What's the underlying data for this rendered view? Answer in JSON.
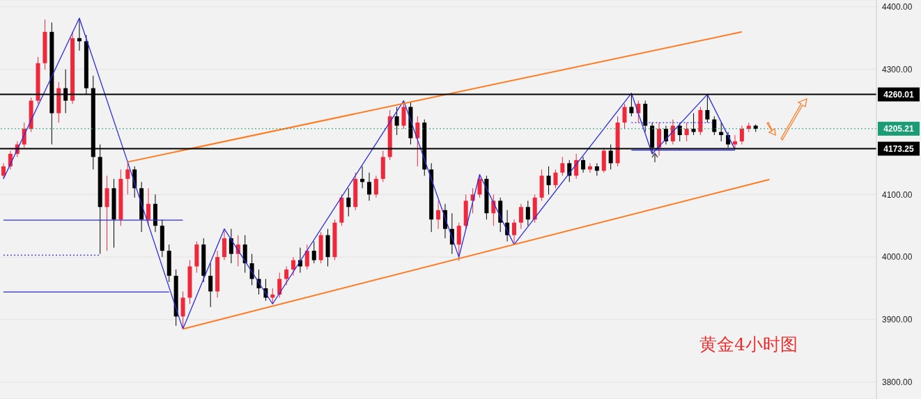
{
  "chart_data": {
    "type": "candlestick",
    "annotations": [
      "黄金4小时图"
    ],
    "categories": [
      null,
      null,
      null,
      null,
      null,
      null,
      null,
      null,
      null,
      null,
      null,
      null,
      null,
      null,
      null,
      null,
      null,
      null,
      null,
      null,
      null,
      null,
      null,
      null,
      null,
      null,
      null,
      null,
      null,
      null,
      null,
      null,
      null,
      null,
      null,
      null,
      null,
      null,
      null,
      null,
      null,
      null,
      null,
      null,
      null,
      null,
      null,
      null,
      null,
      null,
      null,
      null,
      null,
      null,
      null,
      null,
      null,
      null,
      null,
      null,
      null,
      null,
      null,
      null,
      null,
      null,
      null,
      null,
      null,
      null,
      null,
      null,
      null,
      null,
      null,
      null,
      null,
      null,
      null,
      null,
      null,
      null,
      null,
      null,
      null,
      null,
      null,
      null,
      null,
      null,
      null,
      null,
      null,
      null,
      null,
      null,
      null,
      null,
      null,
      null,
      null,
      null,
      null,
      null,
      null,
      null,
      null,
      null,
      null,
      null,
      null,
      null,
      null,
      null,
      null,
      null,
      null,
      null,
      null,
      null,
      null,
      null,
      null,
      null,
      null,
      null,
      null
    ],
    "ylim": [
      3773,
      4411
    ],
    "yticks": [
      {
        "value": 3800,
        "label": "3800.00"
      },
      {
        "value": 3900,
        "label": "3900.00"
      },
      {
        "value": 4000,
        "label": "4000.00"
      },
      {
        "value": 4100,
        "label": "4100.00"
      },
      {
        "value": 4300,
        "label": "4300.00"
      },
      {
        "value": 4400,
        "label": "4400.00"
      }
    ],
    "grid": "y",
    "series": [
      {
        "type": "candlestick",
        "ohlc": [
          [
            4130,
            4150,
            4125,
            4145
          ],
          [
            4145,
            4170,
            4140,
            4165
          ],
          [
            4165,
            4185,
            4160,
            4180
          ],
          [
            4180,
            4215,
            4175,
            4205
          ],
          [
            4205,
            4255,
            4200,
            4250
          ],
          [
            4250,
            4320,
            4245,
            4310
          ],
          [
            4310,
            4380,
            4300,
            4360
          ],
          [
            4360,
            4375,
            4180,
            4230
          ],
          [
            4230,
            4280,
            4215,
            4270
          ],
          [
            4270,
            4300,
            4230,
            4250
          ],
          [
            4250,
            4360,
            4245,
            4350
          ],
          [
            4350,
            4382,
            4330,
            4345
          ],
          [
            4345,
            4355,
            4260,
            4270
          ],
          [
            4270,
            4290,
            4140,
            4160
          ],
          [
            4160,
            4180,
            4005,
            4080
          ],
          [
            4080,
            4130,
            4010,
            4110
          ],
          [
            4110,
            4125,
            4015,
            4060
          ],
          [
            4060,
            4140,
            4050,
            4125
          ],
          [
            4125,
            4152,
            4100,
            4140
          ],
          [
            4140,
            4145,
            4095,
            4110
          ],
          [
            4110,
            4120,
            4040,
            4060
          ],
          [
            4060,
            4110,
            4050,
            4085
          ],
          [
            4085,
            4100,
            4040,
            4050
          ],
          [
            4050,
            4060,
            4000,
            4010
          ],
          [
            4010,
            4020,
            3960,
            3970
          ],
          [
            3970,
            3980,
            3890,
            3905
          ],
          [
            3905,
            3945,
            3885,
            3935
          ],
          [
            3935,
            3995,
            3925,
            3985
          ],
          [
            3985,
            4025,
            3975,
            4020
          ],
          [
            4020,
            4030,
            3960,
            3970
          ],
          [
            3970,
            3990,
            3920,
            3945
          ],
          [
            3945,
            4010,
            3935,
            4000
          ],
          [
            4000,
            4045,
            3995,
            4030
          ],
          [
            4030,
            4045,
            3990,
            4005
          ],
          [
            4005,
            4035,
            3985,
            4020
          ],
          [
            4020,
            4035,
            3975,
            3990
          ],
          [
            3990,
            4005,
            3955,
            3965
          ],
          [
            3965,
            3980,
            3940,
            3950
          ],
          [
            3950,
            3965,
            3930,
            3935
          ],
          [
            3935,
            3950,
            3925,
            3940
          ],
          [
            3940,
            3975,
            3935,
            3965
          ],
          [
            3965,
            3985,
            3955,
            3980
          ],
          [
            3980,
            4000,
            3970,
            3995
          ],
          [
            3995,
            4015,
            3975,
            3985
          ],
          [
            3985,
            4020,
            3980,
            4010
          ],
          [
            4010,
            4025,
            3990,
            3995
          ],
          [
            3995,
            4040,
            3990,
            4035
          ],
          [
            4035,
            4045,
            3985,
            4000
          ],
          [
            4000,
            4060,
            3995,
            4055
          ],
          [
            4055,
            4100,
            4050,
            4095
          ],
          [
            4095,
            4110,
            4065,
            4080
          ],
          [
            4080,
            4135,
            4075,
            4125
          ],
          [
            4125,
            4145,
            4110,
            4120
          ],
          [
            4120,
            4135,
            4090,
            4100
          ],
          [
            4100,
            4130,
            4095,
            4125
          ],
          [
            4125,
            4170,
            4120,
            4160
          ],
          [
            4160,
            4235,
            4155,
            4225
          ],
          [
            4225,
            4240,
            4195,
            4210
          ],
          [
            4210,
            4250,
            4205,
            4240
          ],
          [
            4240,
            4248,
            4180,
            4190
          ],
          [
            4190,
            4225,
            4145,
            4215
          ],
          [
            4215,
            4220,
            4130,
            4140
          ],
          [
            4140,
            4150,
            4040,
            4060
          ],
          [
            4060,
            4090,
            4045,
            4075
          ],
          [
            4075,
            4085,
            4030,
            4045
          ],
          [
            4045,
            4070,
            4005,
            4020
          ],
          [
            4020,
            4055,
            3994,
            4050
          ],
          [
            4050,
            4100,
            4045,
            4090
          ],
          [
            4090,
            4110,
            4070,
            4100
          ],
          [
            4100,
            4132,
            4095,
            4125
          ],
          [
            4125,
            4130,
            4060,
            4070
          ],
          [
            4070,
            4100,
            4050,
            4090
          ],
          [
            4090,
            4095,
            4040,
            4055
          ],
          [
            4055,
            4075,
            4025,
            4035
          ],
          [
            4035,
            4060,
            4020,
            4055
          ],
          [
            4055,
            4085,
            4045,
            4080
          ],
          [
            4080,
            4090,
            4050,
            4060
          ],
          [
            4060,
            4100,
            4055,
            4095
          ],
          [
            4095,
            4140,
            4090,
            4130
          ],
          [
            4130,
            4145,
            4100,
            4115
          ],
          [
            4115,
            4140,
            4110,
            4135
          ],
          [
            4135,
            4160,
            4130,
            4150
          ],
          [
            4150,
            4155,
            4120,
            4130
          ],
          [
            4130,
            4165,
            4125,
            4155
          ],
          [
            4155,
            4160,
            4135,
            4140
          ],
          [
            4140,
            4150,
            4135,
            4145
          ],
          [
            4145,
            4150,
            4130,
            4138
          ],
          [
            4138,
            4175,
            4135,
            4170
          ],
          [
            4170,
            4180,
            4140,
            4150
          ],
          [
            4150,
            4225,
            4145,
            4215
          ],
          [
            4215,
            4245,
            4205,
            4240
          ],
          [
            4240,
            4262,
            4225,
            4230
          ],
          [
            4230,
            4250,
            4215,
            4245
          ],
          [
            4245,
            4250,
            4200,
            4210
          ],
          [
            4210,
            4215,
            4165,
            4175
          ],
          [
            4175,
            4215,
            4162,
            4205
          ],
          [
            4205,
            4210,
            4180,
            4185
          ],
          [
            4185,
            4220,
            4180,
            4210
          ],
          [
            4210,
            4215,
            4185,
            4195
          ],
          [
            4195,
            4215,
            4185,
            4205
          ],
          [
            4205,
            4230,
            4195,
            4200
          ],
          [
            4200,
            4240,
            4195,
            4235
          ],
          [
            4235,
            4260,
            4215,
            4220
          ],
          [
            4220,
            4225,
            4195,
            4200
          ],
          [
            4200,
            4215,
            4185,
            4195
          ],
          [
            4195,
            4200,
            4175,
            4180
          ],
          [
            4180,
            4195,
            4172,
            4185
          ],
          [
            4185,
            4210,
            4180,
            4205
          ],
          [
            4205,
            4215,
            4200,
            4210
          ],
          [
            4210,
            4212,
            4200,
            4205
          ],
          null,
          null,
          null,
          null,
          null,
          null,
          null,
          null,
          null,
          null,
          null,
          null,
          null,
          null,
          null,
          null,
          null
        ],
        "colors": [
          "#f0283c",
          "#f0283c",
          "#f0283c",
          "#f0283c",
          "#f0283c",
          "#f0283c",
          "#f0283c",
          "#000000",
          "#f0283c",
          "#000000",
          "#f0283c",
          "#000000",
          "#000000",
          "#000000",
          "#000000",
          "#f0283c",
          "#000000",
          "#f0283c",
          "#f0283c",
          "#000000",
          "#000000",
          "#f0283c",
          "#000000",
          "#000000",
          "#000000",
          "#000000",
          "#f0283c",
          "#f0283c",
          "#f0283c",
          "#000000",
          "#000000",
          "#f0283c",
          "#f0283c",
          "#000000",
          "#f0283c",
          "#000000",
          "#000000",
          "#000000",
          "#000000",
          "#f0283c",
          "#f0283c",
          "#f0283c",
          "#f0283c",
          "#000000",
          "#f0283c",
          "#000000",
          "#f0283c",
          "#000000",
          "#f0283c",
          "#f0283c",
          "#000000",
          "#f0283c",
          "#000000",
          "#000000",
          "#f0283c",
          "#f0283c",
          "#f0283c",
          "#000000",
          "#f0283c",
          "#000000",
          "#f0283c",
          "#000000",
          "#000000",
          "#f0283c",
          "#000000",
          "#000000",
          "#f0283c",
          "#f0283c",
          "#f0283c",
          "#f0283c",
          "#000000",
          "#f0283c",
          "#000000",
          "#000000",
          "#f0283c",
          "#f0283c",
          "#000000",
          "#f0283c",
          "#f0283c",
          "#000000",
          "#f0283c",
          "#f0283c",
          "#000000",
          "#f0283c",
          "#000000",
          "#f0283c",
          "#000000",
          "#f0283c",
          "#000000",
          "#f0283c",
          "#f0283c",
          "#000000",
          "#f0283c",
          "#000000",
          "#000000",
          "#f0283c",
          "#000000",
          "#f0283c",
          "#000000",
          "#f0283c",
          "#000000",
          "#f0283c",
          "#000000",
          "#000000",
          "#000000",
          "#000000",
          "#f0283c",
          "#f0283c",
          "#f0283c",
          "#000000",
          null,
          null,
          null,
          null,
          null,
          null,
          null,
          null,
          null,
          null,
          null,
          null,
          null,
          null,
          null,
          null,
          null
        ]
      },
      {
        "type": "line",
        "color": "#2b2be0",
        "values": [
          4125,
          null,
          null,
          null,
          null,
          null,
          null,
          null,
          null,
          null,
          null,
          4382,
          null,
          null,
          null,
          null,
          null,
          null,
          4152,
          null,
          null,
          null,
          null,
          null,
          null,
          null,
          3885,
          null,
          null,
          null,
          null,
          null,
          4045,
          null,
          null,
          null,
          null,
          null,
          null,
          3925,
          null,
          null,
          null,
          null,
          null,
          null,
          null,
          null,
          null,
          null,
          null,
          null,
          null,
          null,
          null,
          null,
          null,
          null,
          4250,
          null,
          null,
          null,
          null,
          null,
          null,
          null,
          4000,
          null,
          null,
          4132,
          null,
          null,
          null,
          null,
          4020,
          null,
          null,
          null,
          null,
          null,
          null,
          null,
          null,
          null,
          null,
          null,
          null,
          null,
          null,
          null,
          null,
          4262,
          null,
          null,
          4165,
          null,
          null,
          null,
          null,
          null,
          null,
          null,
          4260,
          null,
          null,
          null,
          4172,
          null,
          null,
          null,
          null,
          null,
          null,
          null,
          null,
          null,
          null,
          null,
          null,
          null,
          null,
          null,
          null,
          null,
          null,
          null,
          null
        ]
      },
      {
        "type": "line",
        "color": "#ff7a21",
        "values": [
          null,
          null,
          null,
          null,
          null,
          null,
          null,
          null,
          null,
          null,
          null,
          null,
          null,
          null,
          null,
          null,
          null,
          null,
          4152,
          null,
          null,
          null,
          null,
          null,
          null,
          null,
          null,
          null,
          null,
          null,
          null,
          null,
          null,
          null,
          null,
          null,
          null,
          null,
          null,
          null,
          null,
          null,
          null,
          null,
          null,
          null,
          null,
          null,
          null,
          null,
          null,
          null,
          null,
          null,
          null,
          null,
          null,
          null,
          null,
          null,
          null,
          null,
          null,
          null,
          null,
          null,
          null,
          null,
          null,
          null,
          null,
          null,
          null,
          null,
          null,
          null,
          null,
          null,
          null,
          null,
          null,
          null,
          null,
          null,
          null,
          null,
          null,
          null,
          null,
          null,
          null,
          null,
          null,
          null,
          null,
          null,
          null,
          null,
          null,
          null,
          null,
          null,
          null,
          null,
          null,
          null,
          null,
          4360,
          null,
          null,
          null,
          null,
          null,
          null,
          null,
          null,
          null,
          null,
          null,
          null,
          null,
          null,
          null,
          null,
          null,
          null,
          null
        ]
      },
      {
        "type": "line",
        "color": "#ff7a21",
        "values": [
          null,
          null,
          null,
          null,
          null,
          null,
          null,
          null,
          null,
          null,
          null,
          null,
          null,
          null,
          null,
          null,
          null,
          null,
          null,
          null,
          null,
          null,
          null,
          null,
          null,
          null,
          3885,
          null,
          null,
          null,
          null,
          null,
          null,
          null,
          null,
          null,
          null,
          null,
          null,
          null,
          null,
          null,
          null,
          null,
          null,
          null,
          null,
          null,
          null,
          null,
          null,
          null,
          null,
          null,
          null,
          null,
          null,
          null,
          null,
          null,
          null,
          null,
          null,
          null,
          null,
          null,
          null,
          null,
          null,
          null,
          null,
          null,
          null,
          null,
          null,
          null,
          null,
          null,
          null,
          null,
          null,
          null,
          null,
          null,
          null,
          null,
          null,
          null,
          null,
          null,
          null,
          null,
          null,
          null,
          null,
          null,
          null,
          null,
          null,
          null,
          null,
          null,
          null,
          null,
          null,
          null,
          null,
          null,
          null,
          null,
          null,
          4124,
          null,
          null,
          null,
          null,
          null,
          null,
          null,
          null,
          null,
          null,
          null,
          null,
          null,
          null,
          null
        ]
      },
      {
        "type": "line",
        "color": "#2b2be0",
        "values": [
          4059,
          null,
          null,
          null,
          null,
          null,
          null,
          null,
          null,
          null,
          null,
          null,
          null,
          null,
          null,
          null,
          null,
          null,
          null,
          null,
          null,
          null,
          null,
          null,
          null,
          null,
          4059,
          null,
          null,
          null,
          null,
          null,
          null,
          null,
          null,
          null,
          null,
          null,
          null,
          null,
          null,
          null,
          null,
          null,
          null,
          null,
          null,
          null,
          null,
          null,
          null,
          null,
          null,
          null,
          null,
          null,
          null,
          null,
          null,
          null,
          null,
          null,
          null,
          null,
          null,
          null,
          null,
          null,
          null,
          null,
          null,
          null,
          null,
          null,
          null,
          null,
          null,
          null,
          null,
          null,
          null,
          null,
          null,
          null,
          null,
          null,
          null,
          null,
          null,
          null,
          null,
          null,
          null,
          null,
          null,
          null,
          null,
          null,
          null,
          null,
          null,
          null,
          null,
          null,
          null,
          null,
          null,
          null,
          null,
          null,
          null,
          null,
          null,
          null,
          null,
          null,
          null,
          null,
          null,
          null,
          null,
          null,
          null,
          null,
          null,
          null,
          null
        ]
      },
      {
        "type": "line",
        "color": "#2b2be0",
        "line_style": "dotted",
        "values": [
          4003,
          null,
          null,
          null,
          null,
          null,
          null,
          null,
          null,
          null,
          null,
          null,
          null,
          null,
          4003,
          null,
          null,
          null,
          null,
          null,
          null,
          null,
          null,
          null,
          null,
          null,
          null,
          null,
          null,
          null,
          null,
          null,
          null,
          null,
          null,
          null,
          null,
          null,
          null,
          null,
          null,
          null,
          null,
          null,
          null,
          null,
          null,
          null,
          null,
          null,
          null,
          null,
          null,
          null,
          null,
          null,
          null,
          null,
          null,
          null,
          null,
          null,
          null,
          null,
          null,
          null,
          null,
          null,
          null,
          null,
          null,
          null,
          null,
          null,
          null,
          null,
          null,
          null,
          null,
          null,
          null,
          null,
          null,
          null,
          null,
          null,
          null,
          null,
          null,
          null,
          null,
          null,
          null,
          null,
          null,
          null,
          null,
          null,
          null,
          null,
          null,
          null,
          null,
          null,
          null,
          null,
          null,
          null,
          null,
          null,
          null,
          null,
          null,
          null,
          null,
          null,
          null,
          null,
          null,
          null,
          null,
          null,
          null,
          null,
          null,
          null,
          null
        ]
      },
      {
        "type": "line",
        "color": "#2b2be0",
        "values": [
          3944,
          null,
          null,
          null,
          null,
          null,
          null,
          null,
          null,
          null,
          null,
          null,
          null,
          null,
          null,
          null,
          null,
          null,
          null,
          null,
          null,
          null,
          null,
          null,
          3944,
          null,
          null,
          null,
          null,
          null,
          null,
          null,
          null,
          null,
          null,
          null,
          null,
          null,
          null,
          null,
          null,
          null,
          null,
          null,
          null,
          null,
          null,
          null,
          null,
          null,
          null,
          null,
          null,
          null,
          null,
          null,
          null,
          null,
          null,
          null,
          null,
          null,
          null,
          null,
          null,
          null,
          null,
          null,
          null,
          null,
          null,
          null,
          null,
          null,
          null,
          null,
          null,
          null,
          null,
          null,
          null,
          null,
          null,
          null,
          null,
          null,
          null,
          null,
          null,
          null,
          null,
          null,
          null,
          null,
          null,
          null,
          null,
          null,
          null,
          null,
          null,
          null,
          null,
          null,
          null,
          null,
          null,
          null,
          null,
          null,
          null,
          null,
          null,
          null,
          null,
          null,
          null,
          null,
          null,
          null,
          null,
          null,
          null,
          null,
          null,
          null,
          null
        ]
      },
      {
        "type": "line",
        "color": "#2b2be0",
        "line_style": "dotted",
        "values": [
          null,
          null,
          null,
          null,
          null,
          null,
          null,
          null,
          null,
          null,
          null,
          null,
          null,
          null,
          null,
          null,
          null,
          null,
          null,
          null,
          null,
          null,
          null,
          null,
          null,
          null,
          null,
          null,
          null,
          null,
          null,
          null,
          null,
          null,
          null,
          null,
          null,
          null,
          null,
          null,
          null,
          null,
          null,
          null,
          null,
          null,
          null,
          null,
          null,
          null,
          null,
          null,
          null,
          null,
          null,
          null,
          null,
          null,
          null,
          null,
          null,
          null,
          null,
          null,
          null,
          null,
          null,
          null,
          null,
          null,
          null,
          null,
          null,
          null,
          null,
          null,
          null,
          null,
          null,
          null,
          null,
          null,
          null,
          null,
          null,
          null,
          null,
          null,
          null,
          null,
          null,
          4215,
          null,
          null,
          null,
          null,
          null,
          null,
          null,
          null,
          null,
          null,
          null,
          4215,
          null,
          null,
          null,
          null,
          null,
          null,
          null,
          null,
          null,
          null,
          null,
          null,
          null,
          null,
          null,
          null,
          null,
          null,
          null,
          null,
          null,
          null,
          null
        ]
      },
      {
        "type": "line",
        "color": "#2b2be0",
        "values": [
          null,
          null,
          null,
          null,
          null,
          null,
          null,
          null,
          null,
          null,
          null,
          null,
          null,
          null,
          null,
          null,
          null,
          null,
          null,
          null,
          null,
          null,
          null,
          null,
          null,
          null,
          null,
          null,
          null,
          null,
          null,
          null,
          null,
          null,
          null,
          null,
          null,
          null,
          null,
          null,
          null,
          null,
          null,
          null,
          null,
          null,
          null,
          null,
          null,
          null,
          null,
          null,
          null,
          null,
          null,
          null,
          null,
          null,
          null,
          null,
          null,
          null,
          null,
          null,
          null,
          null,
          null,
          null,
          null,
          null,
          null,
          null,
          null,
          null,
          null,
          null,
          null,
          null,
          null,
          null,
          null,
          null,
          null,
          null,
          null,
          null,
          null,
          null,
          null,
          null,
          null,
          4171,
          null,
          null,
          null,
          null,
          null,
          null,
          null,
          null,
          null,
          null,
          null,
          null,
          null,
          null,
          4171,
          null,
          null,
          null,
          null,
          null,
          null,
          null,
          null,
          null,
          null,
          null,
          null,
          null,
          null,
          null,
          null,
          null,
          null,
          null,
          null
        ]
      }
    ],
    "ref_lines": [
      {
        "axis": "y",
        "value": 4260.01,
        "label": "4260.01",
        "color": "#000000"
      },
      {
        "axis": "y",
        "value": 4205.21,
        "label": "4205.21",
        "color": "#1a9c74",
        "line_style": "dotted"
      },
      {
        "axis": "y",
        "value": 4173.25,
        "label": "4173.25",
        "color": "#000000"
      }
    ]
  }
}
